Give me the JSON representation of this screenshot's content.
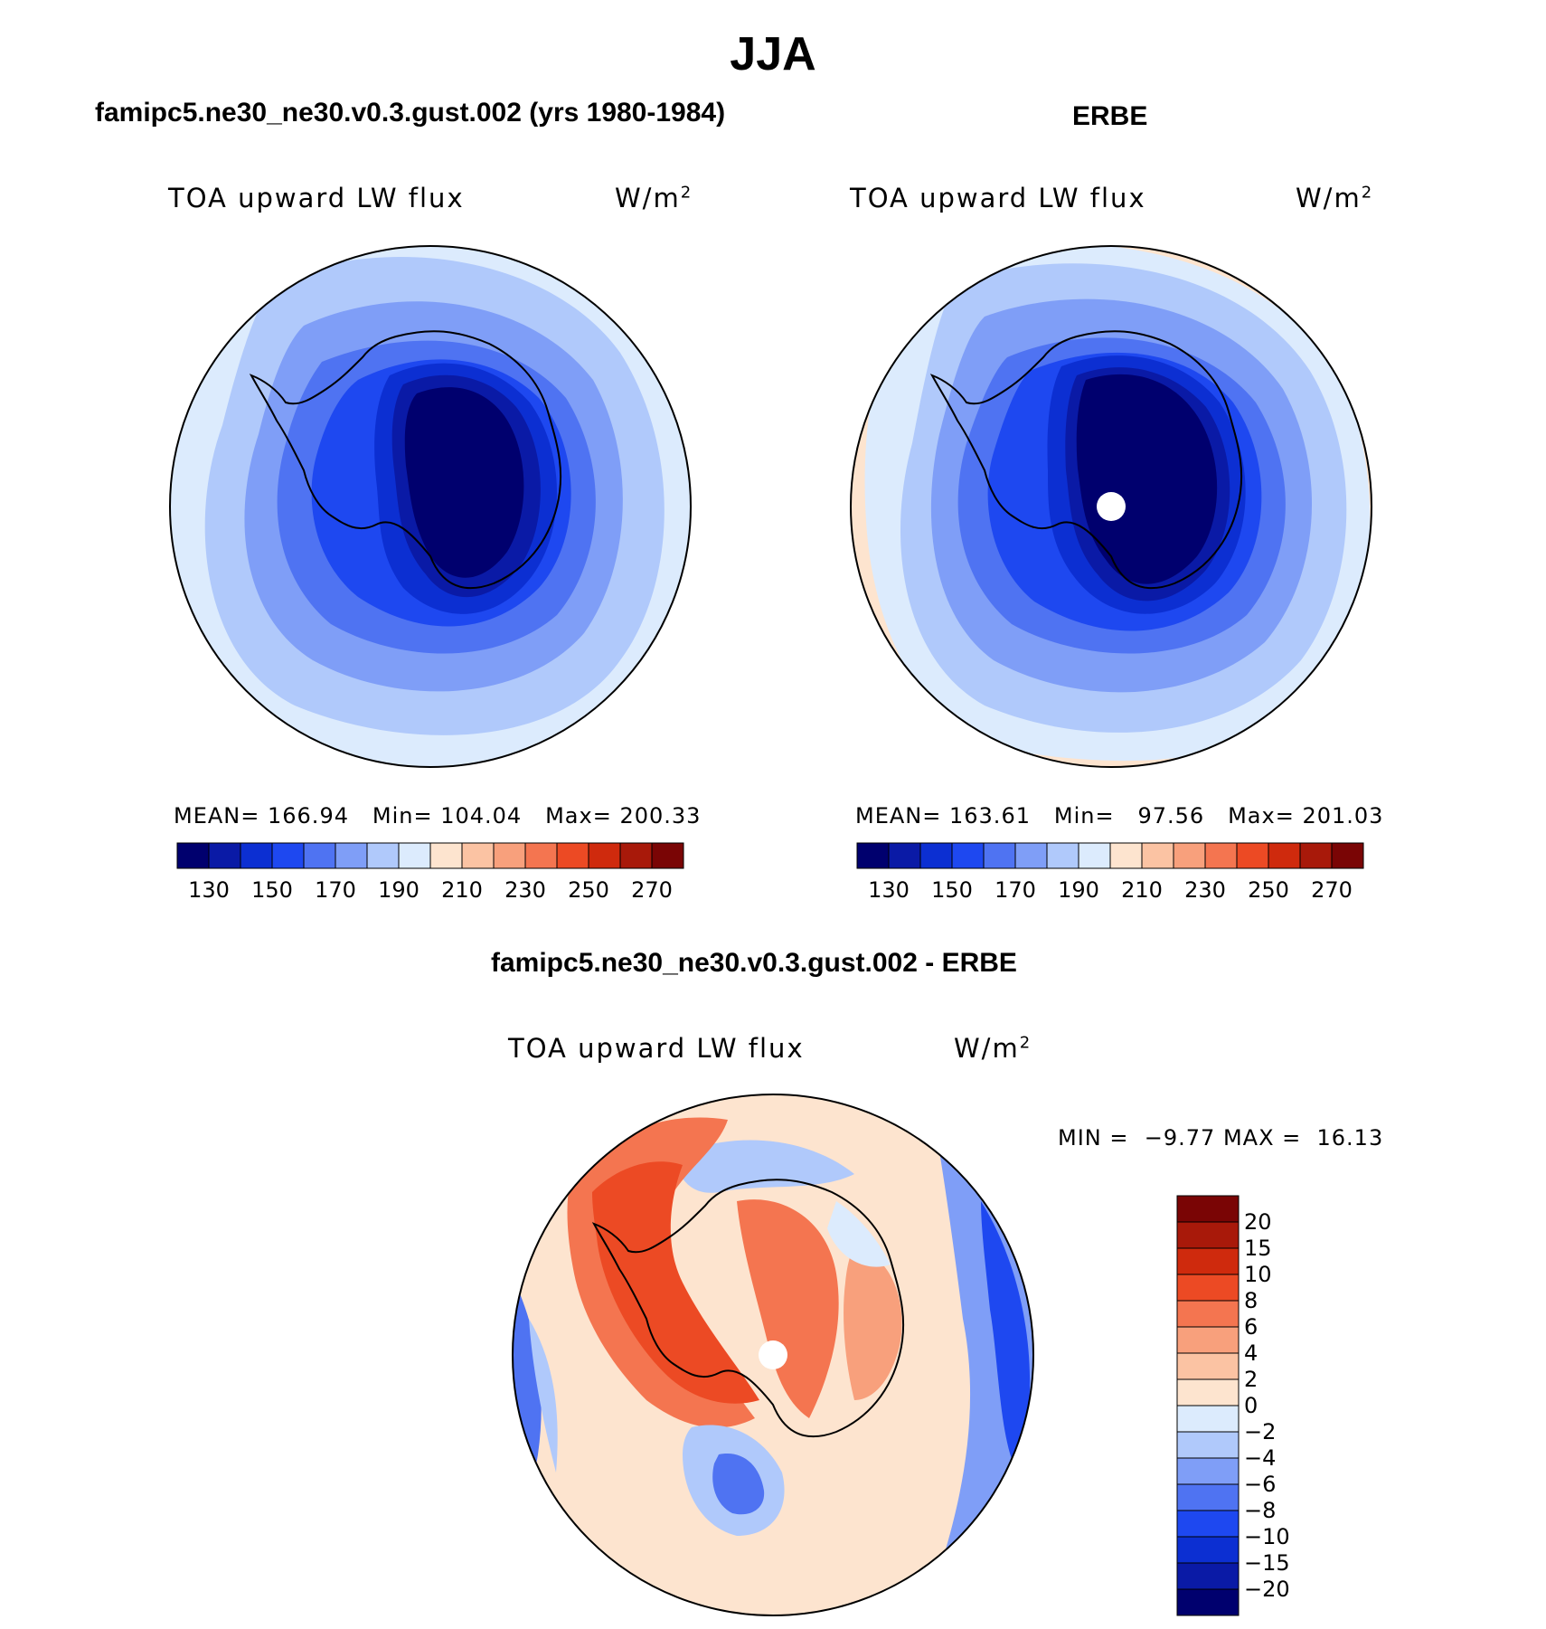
{
  "title": "JJA",
  "panels": {
    "model": {
      "title": "famipc5.ne30_ne30.v0.3.gust.002 (yrs 1980-1984)",
      "variable": "TOA upward LW flux",
      "units": "W/m",
      "units_sup": "2",
      "stats": {
        "mean_label": "MEAN=",
        "mean": "166.94",
        "min_label": "Min=",
        "min": "104.04",
        "max_label": "Max=",
        "max": "200.33"
      }
    },
    "obs": {
      "title": "ERBE",
      "variable": "TOA upward LW flux",
      "units": "W/m",
      "units_sup": "2",
      "stats": {
        "mean_label": "MEAN=",
        "mean": "163.61",
        "min_label": "Min=",
        "min": "97.56",
        "max_label": "Max=",
        "max": "201.03"
      }
    },
    "diff": {
      "title": "famipc5.ne30_ne30.v0.3.gust.002 - ERBE",
      "variable": "TOA upward LW flux",
      "units": "W/m",
      "units_sup": "2",
      "stats": {
        "min_label": "MIN =",
        "min": "−9.77",
        "max_label": "MAX =",
        "max": "16.13"
      }
    }
  },
  "colorbar_abs": {
    "colors": [
      "#00006e",
      "#0a1aa6",
      "#0c2fd2",
      "#1e48f0",
      "#4f73f2",
      "#7f9ef7",
      "#b0c9fb",
      "#dcebfd",
      "#fde4cf",
      "#fbc3a3",
      "#f8a07c",
      "#f47550",
      "#ec4a24",
      "#cf2a0d",
      "#a8190a",
      "#7a0505"
    ],
    "tick_labels": [
      "130",
      "150",
      "170",
      "190",
      "210",
      "230",
      "250",
      "270"
    ]
  },
  "colorbar_diff": {
    "colors": [
      "#7a0505",
      "#a8190a",
      "#cf2a0d",
      "#ec4a24",
      "#f47550",
      "#f8a07c",
      "#fbc3a3",
      "#fde4cf",
      "#dcebfd",
      "#b0c9fb",
      "#7f9ef7",
      "#4f73f2",
      "#1e48f0",
      "#0c2fd2",
      "#0a1aa6",
      "#00006e"
    ],
    "tick_labels": [
      "20",
      "15",
      "10",
      "8",
      "6",
      "4",
      "2",
      "0",
      "−2",
      "−4",
      "−6",
      "−8",
      "−10",
      "−15",
      "−20"
    ]
  }
}
